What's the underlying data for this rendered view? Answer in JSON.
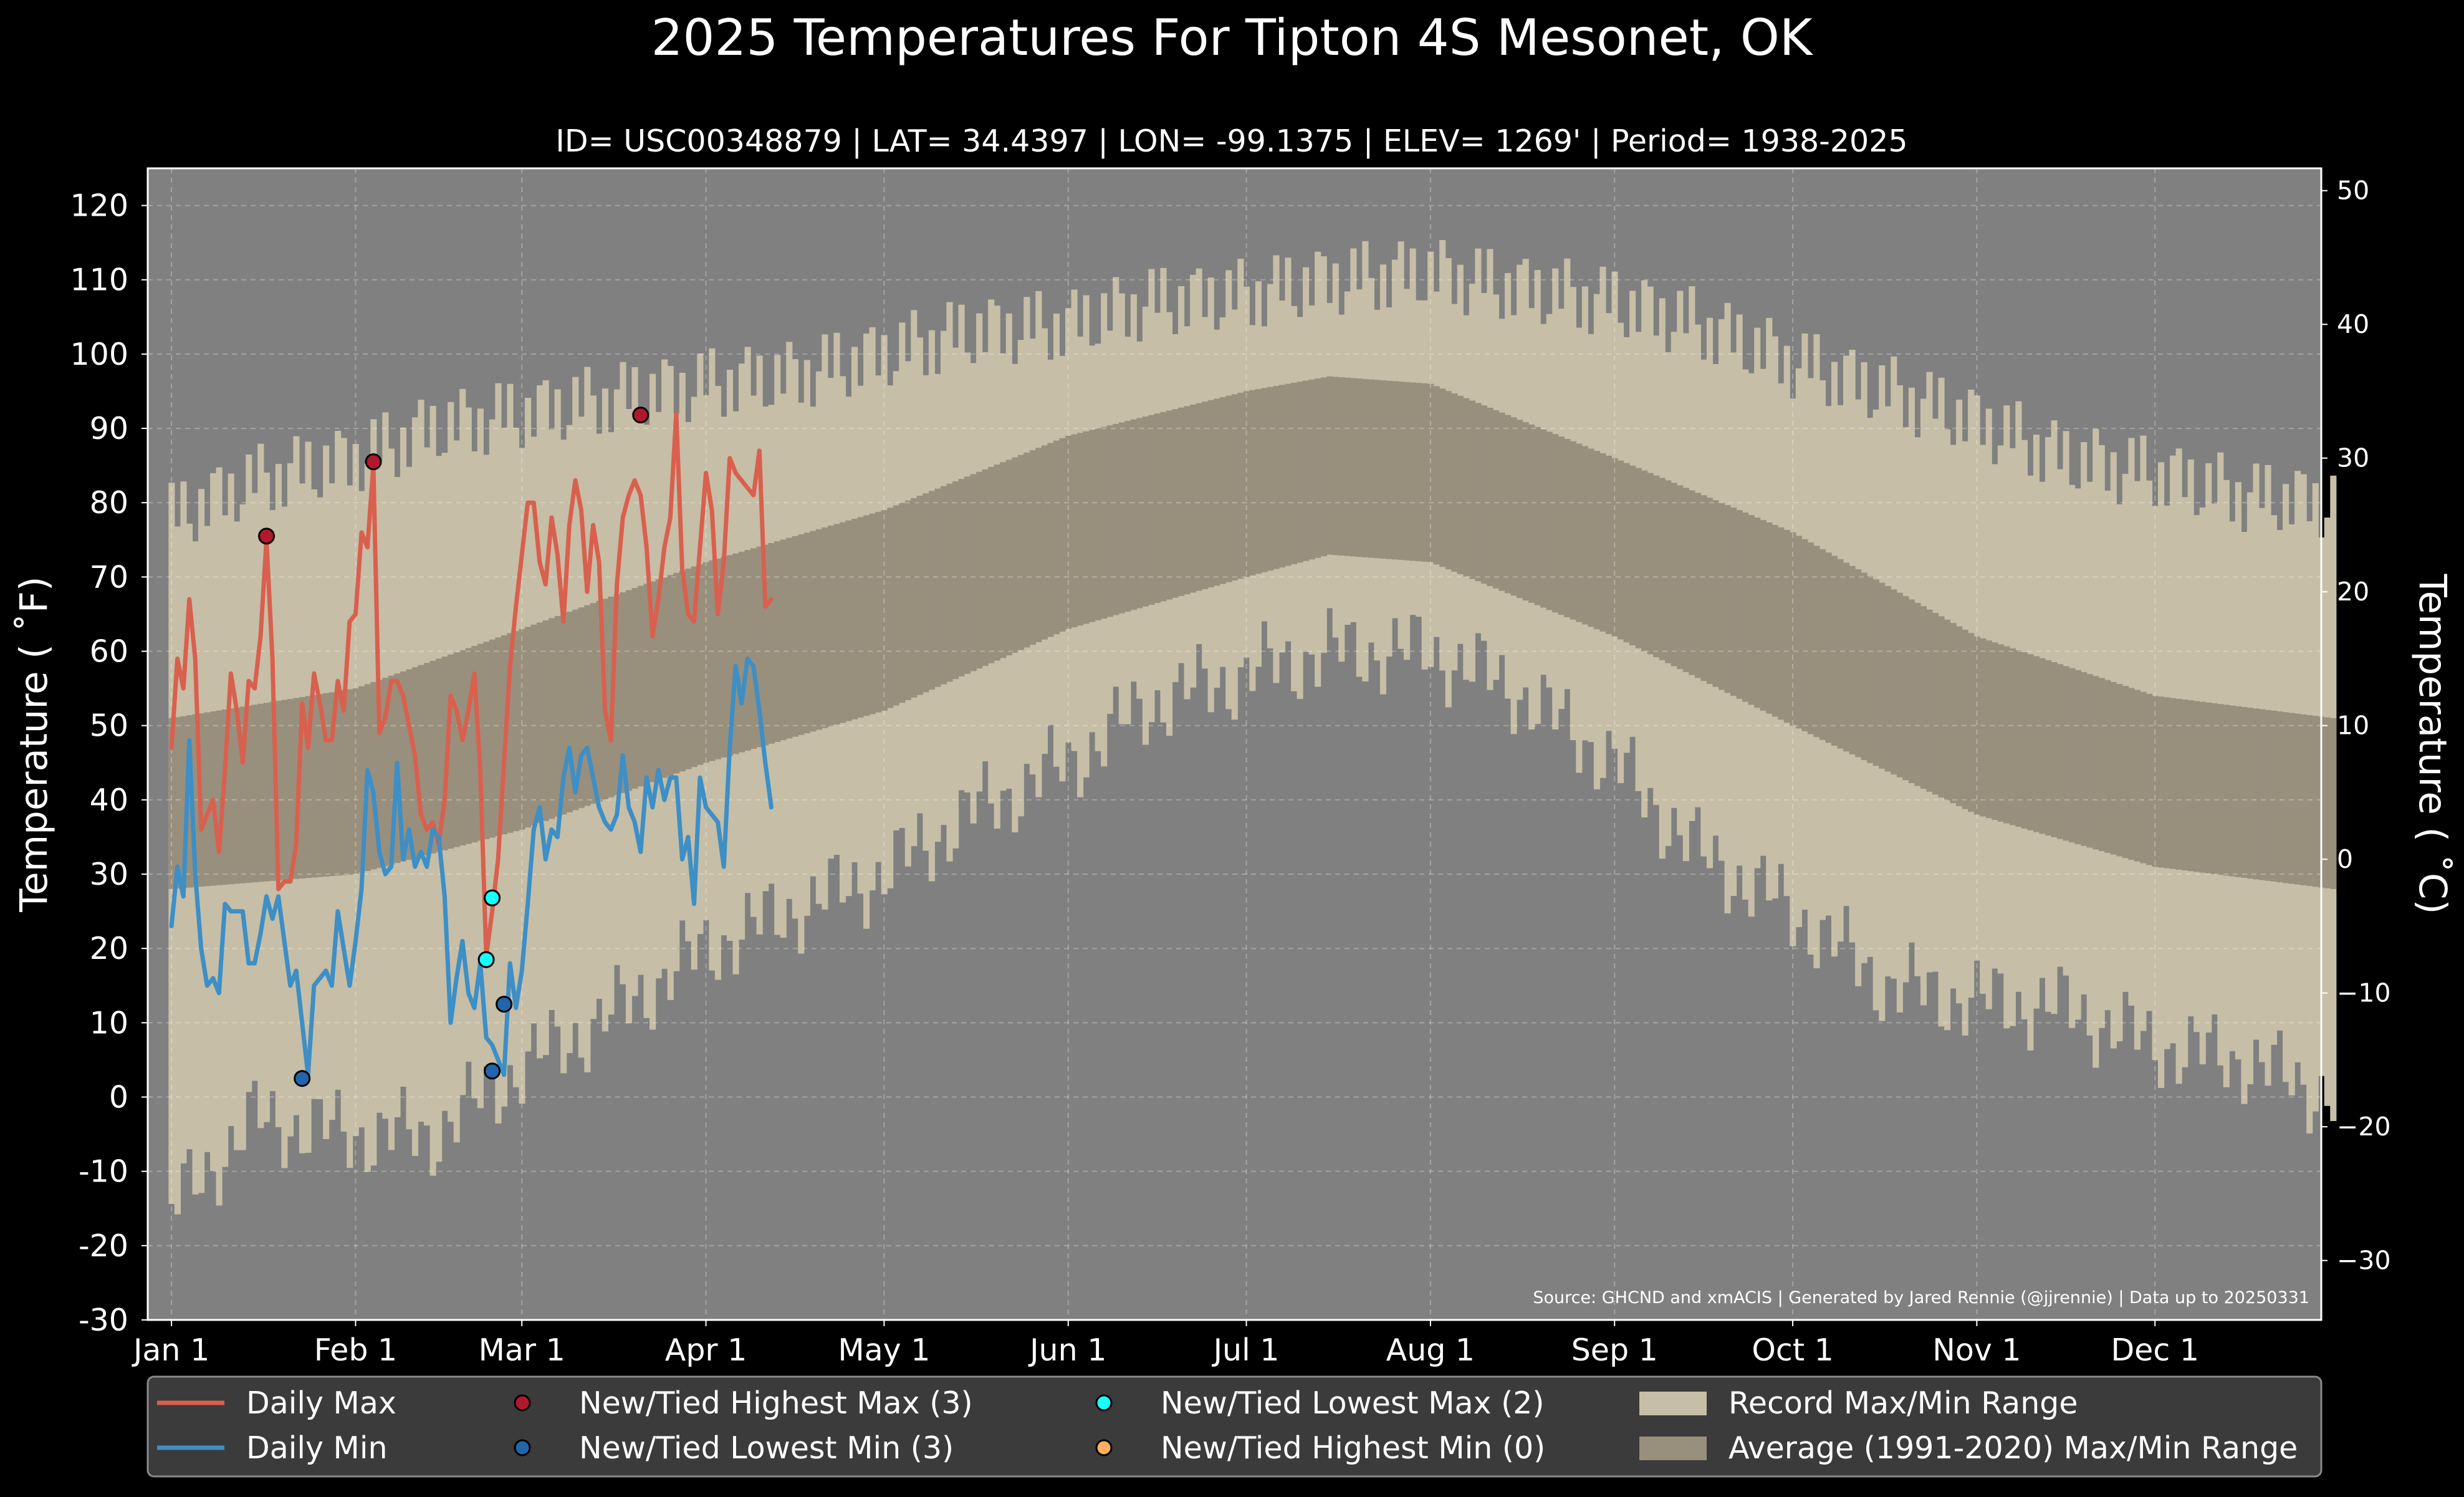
{
  "chart_data": {
    "type": "line",
    "title": "2025 Temperatures For Tipton 4S Mesonet, OK",
    "subtitle": "ID= USC00348879 | LAT= 34.4397 | LON= -99.1375 | ELEV= 1269' | Period= 1938-2025",
    "ylabel_left": "Temperature ( ˚F)",
    "ylabel_right": "Temperature ( ˚C)",
    "ylim": [
      -30,
      125
    ],
    "yticks": [
      -30,
      -20,
      -10,
      0,
      10,
      20,
      30,
      40,
      50,
      60,
      70,
      80,
      90,
      100,
      110,
      120
    ],
    "ytick_labels": [
      "-30",
      "-20",
      "-10",
      "0",
      "10",
      "20",
      "30",
      "40",
      "50",
      "60",
      "70",
      "80",
      "90",
      "100",
      "110",
      "120"
    ],
    "ylim_celsius": [
      -34.4,
      51.7
    ],
    "yticks_celsius": [
      -30,
      -20,
      -10,
      0,
      10,
      20,
      30,
      40,
      50
    ],
    "ytick_labels_celsius": [
      "−30",
      "−20",
      "−10",
      "0",
      "10",
      "20",
      "30",
      "40",
      "50"
    ],
    "xlim_doy": [
      -3,
      363
    ],
    "x_ticks_doy": [
      1,
      32,
      60,
      91,
      121,
      152,
      182,
      213,
      244,
      274,
      305,
      335
    ],
    "x_tick_labels": [
      "Jan 1",
      "Feb 1",
      "Mar 1",
      "Apr 1",
      "May 1",
      "Jun 1",
      "Jul 1",
      "Aug 1",
      "Sep 1",
      "Oct 1",
      "Nov 1",
      "Dec 1"
    ],
    "grid": true,
    "legend_position": "bottom",
    "source": "Source: GHCND and xmACIS | Generated by Jared Rennie (@jjrennie) | Data up to 20250331",
    "colors": {
      "background": "#000000",
      "plot_bg": "#808080",
      "record_range": "#c6bea6",
      "normal_range": "#998f7d",
      "daily_max": "#d9604e",
      "daily_min": "#3d8fc6",
      "highest_max_marker": "#b2182b",
      "lowest_min_marker": "#2166ac",
      "lowest_max_marker": "#17ffff",
      "highest_min_marker": "#fdae61",
      "legend_bg": "#3b3b3b"
    },
    "normal_range": {
      "doy": [
        1,
        32,
        60,
        91,
        121,
        152,
        182,
        196,
        213,
        244,
        274,
        305,
        335,
        365
      ],
      "normal_max": [
        51,
        55,
        63,
        72,
        79,
        89,
        95,
        97,
        96,
        86,
        76,
        62,
        54,
        51
      ],
      "normal_min": [
        28,
        30,
        36,
        45,
        52,
        63,
        70,
        73,
        72,
        62,
        50,
        38,
        31,
        28
      ]
    },
    "record_range": {
      "doy": [
        1,
        15,
        32,
        45,
        60,
        75,
        91,
        105,
        121,
        135,
        152,
        166,
        182,
        196,
        213,
        227,
        244,
        258,
        274,
        290,
        305,
        320,
        335,
        350,
        365
      ],
      "record_max": [
        78,
        83,
        86,
        90,
        92,
        94,
        96,
        97,
        100,
        103,
        104,
        107,
        108,
        110,
        111,
        109,
        107,
        104,
        99,
        95,
        91,
        86,
        84,
        81,
        80
      ],
      "record_min": [
        -15,
        -3,
        -5,
        -5,
        4,
        11,
        20,
        25,
        30,
        38,
        45,
        53,
        57,
        60,
        60,
        55,
        45,
        33,
        25,
        15,
        13,
        12,
        7,
        5,
        0
      ]
    },
    "series": [
      {
        "name": "Daily Max",
        "values": [
          47,
          59,
          55,
          67,
          59,
          36,
          38,
          40,
          33,
          44,
          57,
          52,
          45,
          56,
          55,
          62,
          75,
          59,
          28,
          29,
          29,
          34,
          53,
          47,
          57,
          53,
          48,
          48,
          56,
          52,
          64,
          65,
          76,
          74,
          85,
          49,
          51,
          56,
          56,
          54,
          50,
          46,
          38,
          36,
          37,
          34,
          40,
          54,
          52,
          48,
          52,
          57,
          44,
          19,
          25,
          32,
          45,
          58,
          66,
          73,
          80,
          80,
          72,
          69,
          78,
          73,
          64,
          77,
          83,
          79,
          68,
          77,
          72,
          52,
          48,
          69,
          78,
          81,
          83,
          81,
          74,
          62,
          67,
          74,
          78,
          92,
          71,
          65,
          64,
          74,
          84,
          79,
          65,
          72,
          86,
          84,
          83,
          82,
          81,
          87,
          66,
          67
        ]
      },
      {
        "name": "Daily Min",
        "values": [
          23,
          31,
          27,
          48,
          30,
          20,
          15,
          16,
          14,
          26,
          25,
          25,
          25,
          18,
          18,
          22,
          27,
          24,
          27,
          21,
          15,
          17,
          10,
          3,
          15,
          16,
          17,
          15,
          25,
          20,
          15,
          21,
          28,
          44,
          41,
          33,
          30,
          31,
          45,
          32,
          36,
          31,
          33,
          31,
          36,
          35,
          27,
          10,
          16,
          21,
          14,
          12,
          18,
          8,
          7,
          5,
          3,
          18,
          12,
          17,
          26,
          36,
          39,
          32,
          36,
          35,
          43,
          47,
          41,
          46,
          47,
          43,
          39,
          37,
          36,
          38,
          46,
          39,
          37,
          33,
          43,
          39,
          44,
          40,
          43,
          43,
          32,
          35,
          26,
          43,
          39,
          38,
          37,
          31,
          47,
          58,
          53,
          59,
          58,
          52,
          45,
          39
        ]
      }
    ],
    "records": {
      "new_tied_highest_max": [
        [
          17,
          75.5
        ],
        [
          35,
          85.5
        ],
        [
          80,
          91.8
        ]
      ],
      "new_tied_lowest_min": [
        [
          23,
          2.5
        ],
        [
          55,
          3.5
        ],
        [
          57,
          12.5
        ]
      ],
      "new_tied_lowest_max": [
        [
          54,
          18.5
        ],
        [
          55,
          26.8
        ]
      ],
      "new_tied_highest_min": []
    },
    "legend": [
      {
        "key": "daily_max",
        "kind": "line",
        "label": "Daily Max"
      },
      {
        "key": "highest_max_marker",
        "kind": "marker",
        "label": "New/Tied Highest Max (3)"
      },
      {
        "key": "lowest_max_marker",
        "kind": "marker",
        "label": "New/Tied Lowest Max (2)"
      },
      {
        "key": "record_range",
        "kind": "patch",
        "label": "Record Max/Min Range"
      },
      {
        "key": "daily_min",
        "kind": "line",
        "label": "Daily Min"
      },
      {
        "key": "lowest_min_marker",
        "kind": "marker",
        "label": "New/Tied Lowest Min (3)"
      },
      {
        "key": "highest_min_marker",
        "kind": "marker",
        "label": "New/Tied Highest Min (0)"
      },
      {
        "key": "normal_range",
        "kind": "patch",
        "label": "Average (1991-2020) Max/Min Range"
      }
    ]
  }
}
